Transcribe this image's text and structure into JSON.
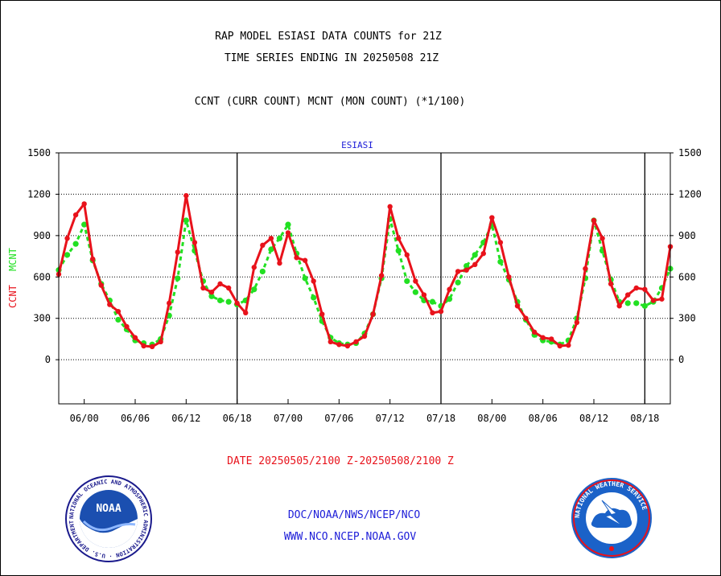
{
  "header": {
    "title_line1": "RAP MODEL ESIASI DATA COUNTS for 21Z",
    "title_line2": "TIME SERIES ENDING IN 20250508 21Z",
    "subtitle": "CCNT (CURR COUNT) MCNT (MON COUNT) (*1/100)",
    "panel_label": "ESIASI"
  },
  "footer": {
    "date_range": "DATE 20250505/2100 Z-20250508/2100 Z",
    "org_path": "DOC/NOAA/NWS/NCEP/NCO",
    "website": "WWW.NCO.NCEP.NOAA.GOV"
  },
  "colors": {
    "ccnt": "#e8121b",
    "mcnt": "#22e022",
    "text_blue": "#1d1dd8"
  },
  "logos": {
    "left": {
      "name": "noaa-logo",
      "text": "NOAA",
      "ring_text": "NATIONAL OCEANIC AND ATMOSPHERIC ADMINISTRATION · U.S. DEPARTMENT OF COMMERCE"
    },
    "right": {
      "name": "nws-logo",
      "ring_text": "NATIONAL WEATHER SERVICE"
    }
  },
  "chart_data": {
    "type": "line",
    "title": "RAP MODEL ESIASI DATA COUNTS for 21Z",
    "ylabel_left": [
      "CCNT",
      "MCNT"
    ],
    "ylim": [
      -320,
      1500
    ],
    "yticks": [
      0,
      300,
      600,
      900,
      1200,
      1500
    ],
    "xticks": [
      {
        "label": "06/00",
        "x": 3
      },
      {
        "label": "06/06",
        "x": 9
      },
      {
        "label": "06/12",
        "x": 15
      },
      {
        "label": "06/18",
        "x": 21
      },
      {
        "label": "07/00",
        "x": 27
      },
      {
        "label": "07/06",
        "x": 33
      },
      {
        "label": "07/12",
        "x": 39
      },
      {
        "label": "07/18",
        "x": 45
      },
      {
        "label": "08/00",
        "x": 51
      },
      {
        "label": "08/06",
        "x": 57
      },
      {
        "label": "08/12",
        "x": 63
      },
      {
        "label": "08/18",
        "x": 69
      }
    ],
    "day_boundaries": [
      21,
      45,
      69
    ],
    "x_unit": "hours since 05/21Z",
    "xlim": [
      0,
      72
    ],
    "grid": "horizontal dotted",
    "series": [
      {
        "name": "CCNT",
        "color": "#e8121b",
        "values": [
          {
            "x": 0,
            "y": 620
          },
          {
            "x": 1,
            "y": 880
          },
          {
            "x": 2,
            "y": 1050
          },
          {
            "x": 3,
            "y": 1130
          },
          {
            "x": 4,
            "y": 730
          },
          {
            "x": 5,
            "y": 540
          },
          {
            "x": 6,
            "y": 400
          },
          {
            "x": 7,
            "y": 350
          },
          {
            "x": 8,
            "y": 240
          },
          {
            "x": 9,
            "y": 160
          },
          {
            "x": 10,
            "y": 100
          },
          {
            "x": 11,
            "y": 95
          },
          {
            "x": 12,
            "y": 130
          },
          {
            "x": 13,
            "y": 410
          },
          {
            "x": 14,
            "y": 780
          },
          {
            "x": 15,
            "y": 1190
          },
          {
            "x": 16,
            "y": 850
          },
          {
            "x": 17,
            "y": 520
          },
          {
            "x": 18,
            "y": 490
          },
          {
            "x": 19,
            "y": 550
          },
          {
            "x": 20,
            "y": 520
          },
          {
            "x": 21,
            "y": 410
          },
          {
            "x": 22,
            "y": 340
          },
          {
            "x": 23,
            "y": 670
          },
          {
            "x": 24,
            "y": 830
          },
          {
            "x": 25,
            "y": 880
          },
          {
            "x": 26,
            "y": 700
          },
          {
            "x": 27,
            "y": 920
          },
          {
            "x": 28,
            "y": 740
          },
          {
            "x": 29,
            "y": 720
          },
          {
            "x": 30,
            "y": 570
          },
          {
            "x": 31,
            "y": 330
          },
          {
            "x": 32,
            "y": 130
          },
          {
            "x": 33,
            "y": 110
          },
          {
            "x": 34,
            "y": 100
          },
          {
            "x": 35,
            "y": 130
          },
          {
            "x": 36,
            "y": 170
          },
          {
            "x": 37,
            "y": 330
          },
          {
            "x": 38,
            "y": 610
          },
          {
            "x": 39,
            "y": 1110
          },
          {
            "x": 40,
            "y": 880
          },
          {
            "x": 41,
            "y": 760
          },
          {
            "x": 42,
            "y": 570
          },
          {
            "x": 43,
            "y": 470
          },
          {
            "x": 44,
            "y": 340
          },
          {
            "x": 45,
            "y": 350
          },
          {
            "x": 46,
            "y": 510
          },
          {
            "x": 47,
            "y": 640
          },
          {
            "x": 48,
            "y": 650
          },
          {
            "x": 49,
            "y": 690
          },
          {
            "x": 50,
            "y": 770
          },
          {
            "x": 51,
            "y": 1030
          },
          {
            "x": 52,
            "y": 850
          },
          {
            "x": 53,
            "y": 600
          },
          {
            "x": 54,
            "y": 390
          },
          {
            "x": 55,
            "y": 300
          },
          {
            "x": 56,
            "y": 200
          },
          {
            "x": 57,
            "y": 160
          },
          {
            "x": 58,
            "y": 150
          },
          {
            "x": 59,
            "y": 100
          },
          {
            "x": 60,
            "y": 105
          },
          {
            "x": 61,
            "y": 270
          },
          {
            "x": 62,
            "y": 660
          },
          {
            "x": 63,
            "y": 1010
          },
          {
            "x": 64,
            "y": 880
          },
          {
            "x": 65,
            "y": 550
          },
          {
            "x": 66,
            "y": 390
          },
          {
            "x": 67,
            "y": 470
          },
          {
            "x": 68,
            "y": 520
          },
          {
            "x": 69,
            "y": 510
          },
          {
            "x": 70,
            "y": 430
          },
          {
            "x": 71,
            "y": 440
          },
          {
            "x": 72,
            "y": 820
          }
        ]
      },
      {
        "name": "MCNT",
        "color": "#22e022",
        "values": [
          {
            "x": 0,
            "y": 650
          },
          {
            "x": 1,
            "y": 760
          },
          {
            "x": 2,
            "y": 840
          },
          {
            "x": 3,
            "y": 980
          },
          {
            "x": 4,
            "y": 720
          },
          {
            "x": 5,
            "y": 550
          },
          {
            "x": 6,
            "y": 430
          },
          {
            "x": 7,
            "y": 290
          },
          {
            "x": 8,
            "y": 220
          },
          {
            "x": 9,
            "y": 140
          },
          {
            "x": 10,
            "y": 120
          },
          {
            "x": 11,
            "y": 110
          },
          {
            "x": 12,
            "y": 150
          },
          {
            "x": 13,
            "y": 320
          },
          {
            "x": 14,
            "y": 590
          },
          {
            "x": 15,
            "y": 1010
          },
          {
            "x": 16,
            "y": 790
          },
          {
            "x": 17,
            "y": 570
          },
          {
            "x": 18,
            "y": 460
          },
          {
            "x": 19,
            "y": 430
          },
          {
            "x": 20,
            "y": 420
          },
          {
            "x": 21,
            "y": 400
          },
          {
            "x": 22,
            "y": 430
          },
          {
            "x": 23,
            "y": 510
          },
          {
            "x": 24,
            "y": 640
          },
          {
            "x": 25,
            "y": 800
          },
          {
            "x": 26,
            "y": 880
          },
          {
            "x": 27,
            "y": 980
          },
          {
            "x": 28,
            "y": 770
          },
          {
            "x": 29,
            "y": 590
          },
          {
            "x": 30,
            "y": 450
          },
          {
            "x": 31,
            "y": 280
          },
          {
            "x": 32,
            "y": 160
          },
          {
            "x": 33,
            "y": 120
          },
          {
            "x": 34,
            "y": 110
          },
          {
            "x": 35,
            "y": 120
          },
          {
            "x": 36,
            "y": 190
          },
          {
            "x": 37,
            "y": 330
          },
          {
            "x": 38,
            "y": 590
          },
          {
            "x": 39,
            "y": 1020
          },
          {
            "x": 40,
            "y": 790
          },
          {
            "x": 41,
            "y": 570
          },
          {
            "x": 42,
            "y": 490
          },
          {
            "x": 43,
            "y": 430
          },
          {
            "x": 44,
            "y": 420
          },
          {
            "x": 45,
            "y": 390
          },
          {
            "x": 46,
            "y": 440
          },
          {
            "x": 47,
            "y": 560
          },
          {
            "x": 48,
            "y": 680
          },
          {
            "x": 49,
            "y": 760
          },
          {
            "x": 50,
            "y": 850
          },
          {
            "x": 51,
            "y": 980
          },
          {
            "x": 52,
            "y": 710
          },
          {
            "x": 53,
            "y": 580
          },
          {
            "x": 54,
            "y": 420
          },
          {
            "x": 55,
            "y": 290
          },
          {
            "x": 56,
            "y": 180
          },
          {
            "x": 57,
            "y": 140
          },
          {
            "x": 58,
            "y": 130
          },
          {
            "x": 59,
            "y": 110
          },
          {
            "x": 60,
            "y": 140
          },
          {
            "x": 61,
            "y": 300
          },
          {
            "x": 62,
            "y": 590
          },
          {
            "x": 63,
            "y": 1010
          },
          {
            "x": 64,
            "y": 790
          },
          {
            "x": 65,
            "y": 580
          },
          {
            "x": 66,
            "y": 420
          },
          {
            "x": 67,
            "y": 410
          },
          {
            "x": 68,
            "y": 410
          },
          {
            "x": 69,
            "y": 390
          },
          {
            "x": 70,
            "y": 420
          },
          {
            "x": 71,
            "y": 520
          },
          {
            "x": 72,
            "y": 660
          }
        ]
      }
    ]
  }
}
